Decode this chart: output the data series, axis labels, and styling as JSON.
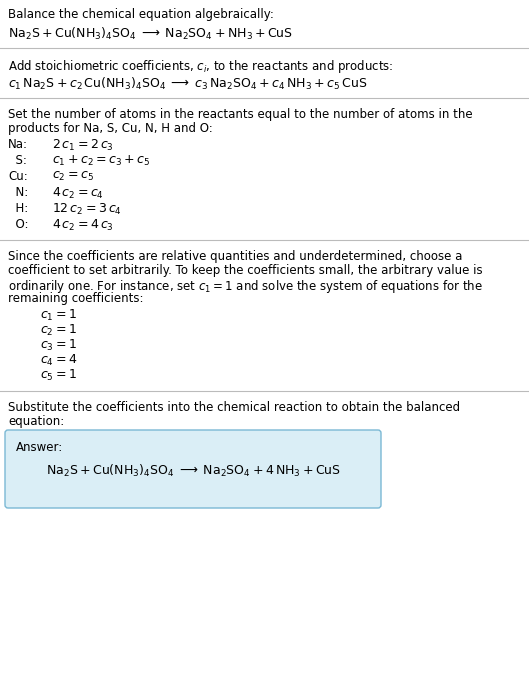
{
  "bg_color": "#ffffff",
  "answer_box_color": "#daeef6",
  "answer_box_border": "#7ab8d4",
  "text_color": "#000000",
  "section1_title": "Balance the chemical equation algebraically:",
  "section1_eq": "$\\mathrm{Na_2S + Cu(NH_3)_4SO_4 \\;\\longrightarrow\\; Na_2SO_4 + NH_3 + CuS}$",
  "section2_title": "Add stoichiometric coefficients, $c_i$, to the reactants and products:",
  "section2_eq": "$c_1\\,\\mathrm{Na_2S} + c_2\\,\\mathrm{Cu(NH_3)_4SO_4} \\;\\longrightarrow\\; c_3\\,\\mathrm{Na_2SO_4} + c_4\\,\\mathrm{NH_3} + c_5\\,\\mathrm{CuS}$",
  "section3_title_l1": "Set the number of atoms in the reactants equal to the number of atoms in the",
  "section3_title_l2": "products for Na, S, Cu, N, H and O:",
  "section3_eqs": [
    [
      "Na:",
      "$2\\,c_1 = 2\\,c_3$"
    ],
    [
      "  S:",
      "$c_1 + c_2 = c_3 + c_5$"
    ],
    [
      "Cu:",
      "$c_2 = c_5$"
    ],
    [
      "  N:",
      "$4\\,c_2 = c_4$"
    ],
    [
      "  H:",
      "$12\\,c_2 = 3\\,c_4$"
    ],
    [
      "  O:",
      "$4\\,c_2 = 4\\,c_3$"
    ]
  ],
  "section4_title_l1": "Since the coefficients are relative quantities and underdetermined, choose a",
  "section4_title_l2": "coefficient to set arbitrarily. To keep the coefficients small, the arbitrary value is",
  "section4_title_l3": "ordinarily one. For instance, set $c_1 = 1$ and solve the system of equations for the",
  "section4_title_l4": "remaining coefficients:",
  "section4_eqs": [
    "$c_1 = 1$",
    "$c_2 = 1$",
    "$c_3 = 1$",
    "$c_4 = 4$",
    "$c_5 = 1$"
  ],
  "section5_title_l1": "Substitute the coefficients into the chemical reaction to obtain the balanced",
  "section5_title_l2": "equation:",
  "answer_label": "Answer:",
  "answer_eq": "$\\mathrm{Na_2S + Cu(NH_3)_4SO_4 \\;\\longrightarrow\\; Na_2SO_4 + 4\\,NH_3 + CuS}$",
  "figsize": [
    5.29,
    6.87
  ],
  "dpi": 100
}
